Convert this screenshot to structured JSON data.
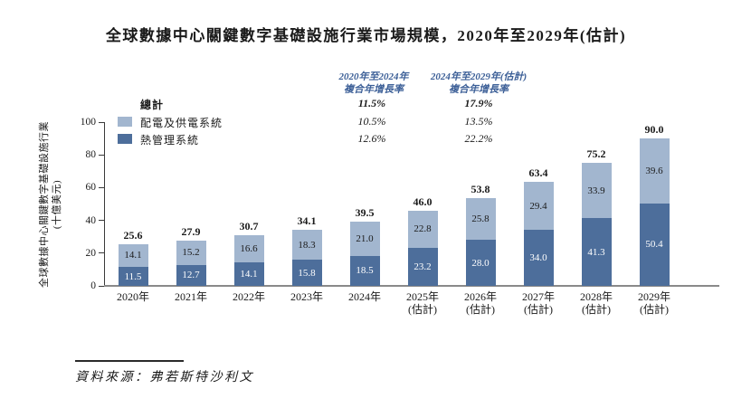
{
  "title": "全球數據中心關鍵數字基礎設施行業市場規模，2020年至2029年(估計)",
  "cagr": {
    "columns": [
      {
        "line1": "2020年至2024年",
        "line2": "複合年增長率"
      },
      {
        "line1": "2024年至2029年(估計)",
        "line2": "複合年增長率"
      }
    ],
    "rows": [
      {
        "label": "總計",
        "c1": "11.5%",
        "c2": "17.9%"
      },
      {
        "label": "配電及供電系統",
        "c1": "10.5%",
        "c2": "13.5%"
      },
      {
        "label": "熱管理系統",
        "c1": "12.6%",
        "c2": "22.2%"
      }
    ]
  },
  "source": "資料來源：弗若斯特沙利文",
  "colors": {
    "power_series": "#a2b6cf",
    "thermal_series": "#4d6e9b",
    "cagr_header_text": "#3c5f97",
    "x_axis_line": "#8a8a8a"
  },
  "chart_data": {
    "type": "bar",
    "stacked": true,
    "title": "全球數據中心關鍵數字基礎設施行業市場規模，2020年至2029年(估計)",
    "ylabel": [
      "全球數據中心關鍵數字基礎設施行業",
      "(十億美元)"
    ],
    "unit": "十億美元",
    "ylim": [
      0,
      100
    ],
    "yticks": [
      0,
      20,
      40,
      60,
      80,
      100
    ],
    "grid": false,
    "legend_position": "top-left-inside",
    "legend": [
      "總計",
      "配電及供電系統",
      "熱管理系統"
    ],
    "categories": [
      "2020年",
      "2021年",
      "2022年",
      "2023年",
      "2024年",
      "2025年",
      "2026年",
      "2027年",
      "2028年",
      "2029年"
    ],
    "category_notes": [
      "",
      "",
      "",
      "",
      "",
      "(估計)",
      "(估計)",
      "(估計)",
      "(估計)",
      "(估計)"
    ],
    "series": [
      {
        "name": "配電及供電系統",
        "color": "#a2b6cf",
        "stack_position": "top",
        "values": [
          14.1,
          15.2,
          16.6,
          18.3,
          21.0,
          22.8,
          25.8,
          29.4,
          33.9,
          39.6
        ]
      },
      {
        "name": "熱管理系統",
        "color": "#4d6e9b",
        "stack_position": "bottom",
        "values": [
          11.5,
          12.7,
          14.1,
          15.8,
          18.5,
          23.2,
          28.0,
          34.0,
          41.3,
          50.4
        ]
      }
    ],
    "totals": [
      25.6,
      27.9,
      30.7,
      34.1,
      39.5,
      46.0,
      53.8,
      63.4,
      75.2,
      90.0
    ]
  }
}
